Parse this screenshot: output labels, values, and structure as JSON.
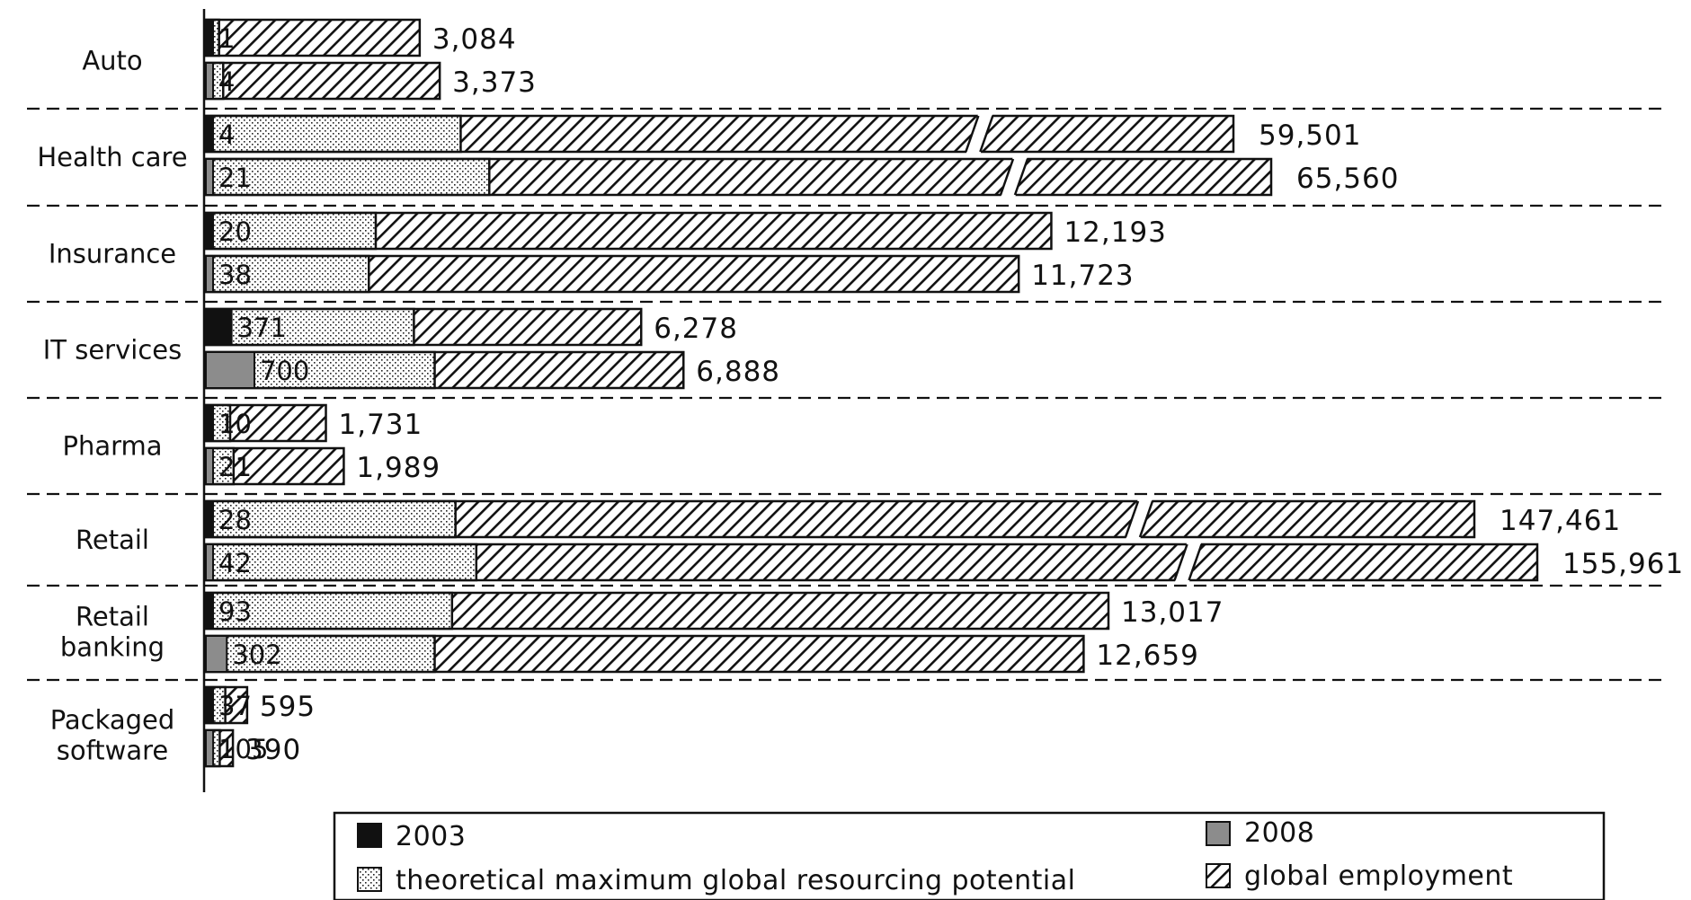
{
  "chart_data": {
    "type": "bar",
    "orientation": "horizontal",
    "title": "",
    "xlabel": "",
    "ylabel": "",
    "grid": false,
    "legend_position": "bottom",
    "colors": {
      "bar_2003": "#111111",
      "bar_2008": "#8c8c8c",
      "potential_fill": "#ffffff",
      "employment_fill": "#ffffff",
      "stroke": "#111111"
    },
    "legend": {
      "s2003": "2003",
      "s2008": "2008",
      "potential": "theoretical maximum global resourcing potential",
      "employment": "global employment"
    },
    "categories": [
      {
        "label": [
          "Auto"
        ],
        "rows": [
          {
            "year": "2003",
            "actual": 1,
            "potential_label": "1",
            "potential": 190,
            "employment": 3084,
            "employment_label": "3,084"
          },
          {
            "year": "2008",
            "actual": 4,
            "potential_label": "4",
            "potential": 250,
            "employment": 3373,
            "employment_label": "3,373"
          }
        ]
      },
      {
        "label": [
          "Health care"
        ],
        "rows": [
          {
            "year": "2003",
            "actual": 4,
            "potential_label": "4",
            "potential": 4900,
            "employment": 59501,
            "employment_label": "59,501",
            "break": true
          },
          {
            "year": "2008",
            "actual": 21,
            "potential_label": "21",
            "potential": 5450,
            "employment": 65560,
            "employment_label": "65,560",
            "break": true
          }
        ]
      },
      {
        "label": [
          "Insurance"
        ],
        "rows": [
          {
            "year": "2003",
            "actual": 20,
            "potential_label": "20",
            "potential": 2450,
            "employment": 12193,
            "employment_label": "12,193"
          },
          {
            "year": "2008",
            "actual": 38,
            "potential_label": "38",
            "potential": 2350,
            "employment": 11723,
            "employment_label": "11,723"
          }
        ]
      },
      {
        "label": [
          "IT services"
        ],
        "rows": [
          {
            "year": "2003",
            "actual": 371,
            "potential_label": "371",
            "potential": 3000,
            "employment": 6278,
            "employment_label": "6,278"
          },
          {
            "year": "2008",
            "actual": 700,
            "potential_label": "700",
            "potential": 3300,
            "employment": 6888,
            "employment_label": "6,888"
          }
        ]
      },
      {
        "label": [
          "Pharma"
        ],
        "rows": [
          {
            "year": "2003",
            "actual": 10,
            "potential_label": "10",
            "potential": 350,
            "employment": 1731,
            "employment_label": "1,731"
          },
          {
            "year": "2008",
            "actual": 21,
            "potential_label": "21",
            "potential": 400,
            "employment": 1989,
            "employment_label": "1,989"
          }
        ]
      },
      {
        "label": [
          "Retail"
        ],
        "rows": [
          {
            "year": "2003",
            "actual": 28,
            "potential_label": "28",
            "potential": 4800,
            "employment": 147461,
            "employment_label": "147,461",
            "break": true
          },
          {
            "year": "2008",
            "actual": 42,
            "potential_label": "42",
            "potential": 5200,
            "employment": 155961,
            "employment_label": "155,961",
            "break": true
          }
        ]
      },
      {
        "label": [
          "Retail",
          "banking"
        ],
        "rows": [
          {
            "year": "2003",
            "actual": 93,
            "potential_label": "93",
            "potential": 3550,
            "employment": 13017,
            "employment_label": "13,017"
          },
          {
            "year": "2008",
            "actual": 302,
            "potential_label": "302",
            "potential": 3300,
            "employment": 12659,
            "employment_label": "12,659"
          }
        ]
      },
      {
        "label": [
          "Packaged",
          "software"
        ],
        "rows": [
          {
            "year": "2003",
            "actual": 37,
            "potential_label": "37",
            "potential": 280,
            "employment": 595,
            "employment_label": "595"
          },
          {
            "year": "2008",
            "actual": 105,
            "potential_label": "105",
            "potential": 200,
            "employment": 390,
            "employment_label": "390"
          }
        ]
      }
    ]
  }
}
